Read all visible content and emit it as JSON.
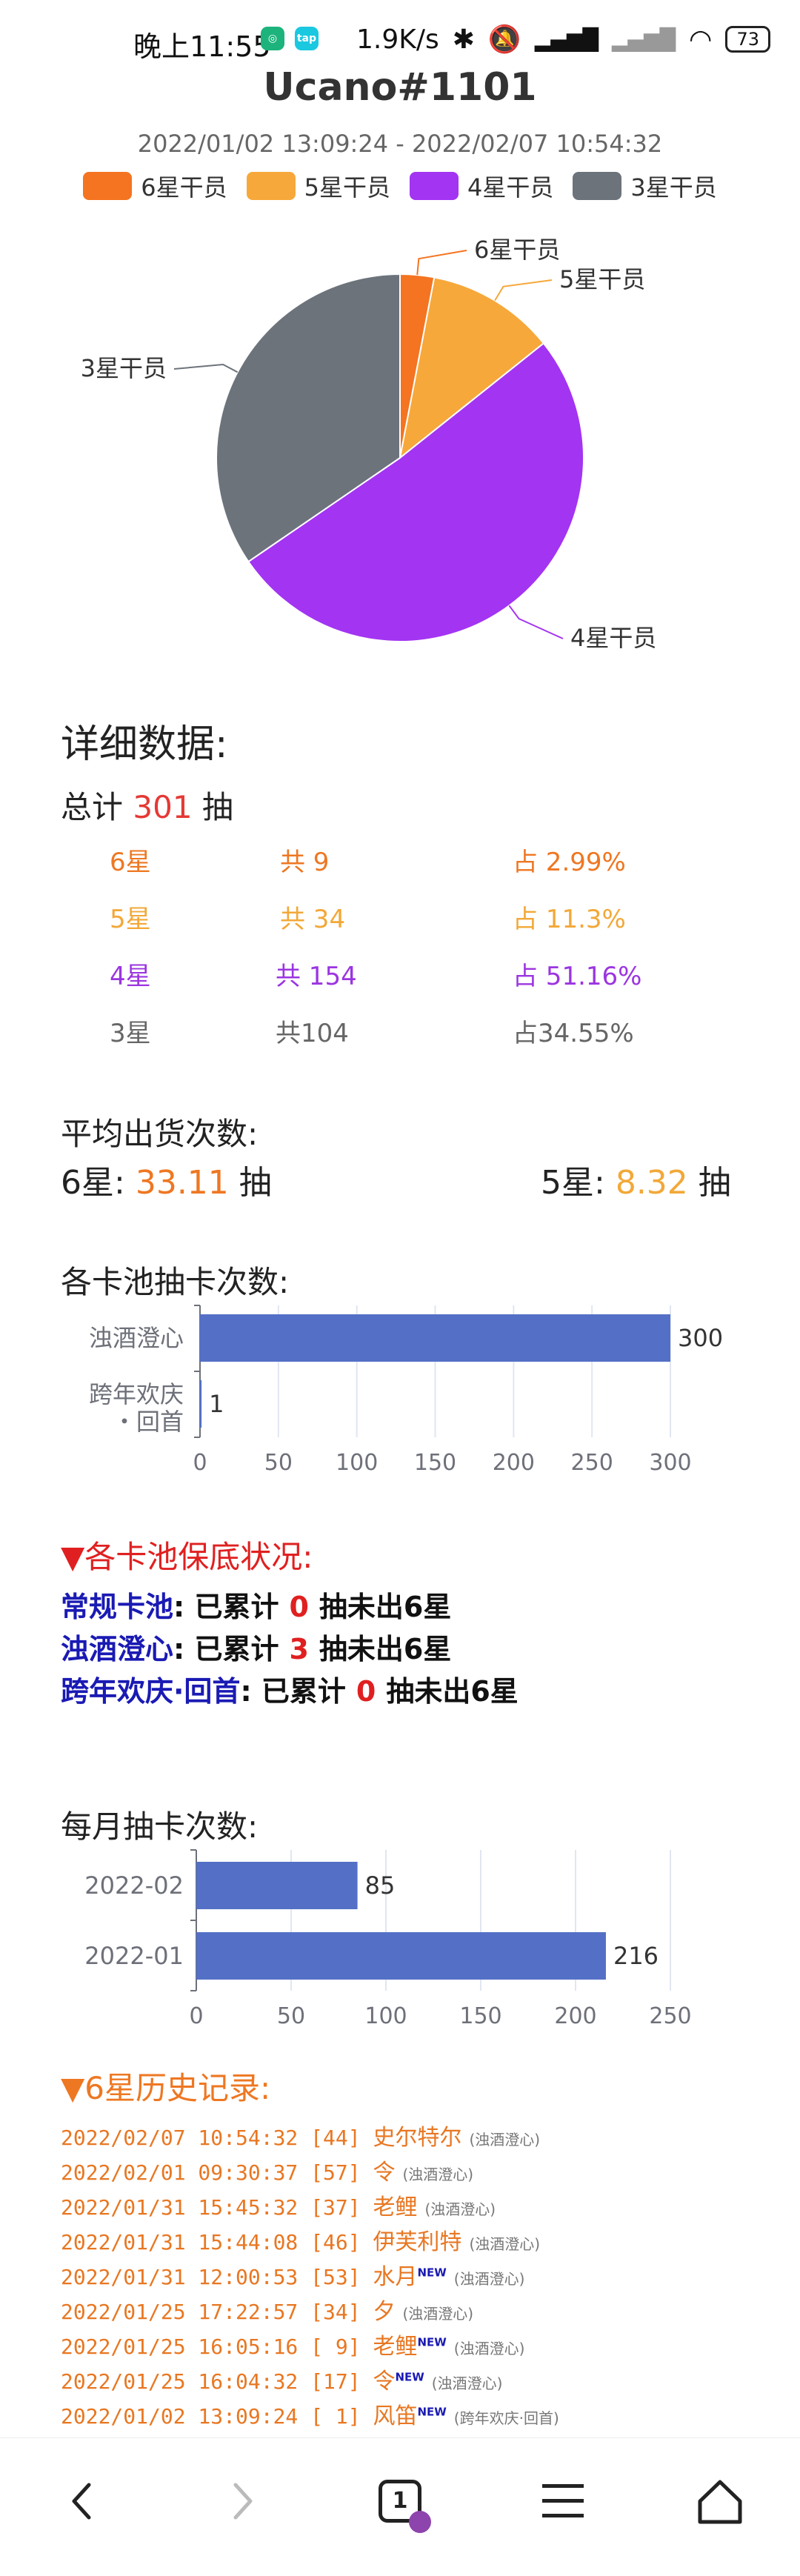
{
  "status_bar": {
    "time": "晚上11:55",
    "network": "1.9K/s",
    "battery": "73",
    "badge2": "tap"
  },
  "header": {
    "title": "Ucano#1101",
    "date_range": "2022/01/02 13:09:24 - 2022/02/07 10:54:32"
  },
  "pie": {
    "legend": [
      {
        "label": "6星干员",
        "color": "#f47421"
      },
      {
        "label": "5星干员",
        "color": "#f7a83a"
      },
      {
        "label": "4星干员",
        "color": "#a334f2"
      },
      {
        "label": "3星干员",
        "color": "#6c737b"
      }
    ],
    "labels": [
      "6星干员",
      "5星干员",
      "4星干员",
      "3星干员"
    ]
  },
  "chart_data": [
    {
      "type": "pie",
      "categories": [
        "6星干员",
        "5星干员",
        "4星干员",
        "3星干员"
      ],
      "values": [
        9,
        34,
        154,
        104
      ],
      "colors": [
        "#f47421",
        "#f7a83a",
        "#a334f2",
        "#6c737b"
      ]
    },
    {
      "type": "bar",
      "title": "各卡池抽卡次数:",
      "categories": [
        "浊酒澄心",
        "跨年欢庆·回首"
      ],
      "values": [
        300,
        1
      ],
      "xlim": [
        0,
        300
      ],
      "ticks": [
        0,
        50,
        100,
        150,
        200,
        250,
        300
      ]
    },
    {
      "type": "bar",
      "title": "每月抽卡次数:",
      "categories": [
        "2022-02",
        "2022-01"
      ],
      "values": [
        85,
        216
      ],
      "xlim": [
        0,
        250
      ],
      "ticks": [
        0,
        50,
        100,
        150,
        200,
        250
      ]
    }
  ],
  "details": {
    "heading": "详细数据:",
    "total_prefix": "总计",
    "total": "301",
    "total_suffix": "抽",
    "rows": [
      {
        "star": "6星",
        "count": "共 9",
        "pct": "占 2.99%",
        "color": "#ee7722"
      },
      {
        "star": "5星",
        "count": "共 34",
        "pct": "占 11.3%",
        "color": "#f2a838"
      },
      {
        "star": "4星",
        "count": "共 154",
        "pct": "占 51.16%",
        "color": "#9b35e0"
      },
      {
        "star": "3星",
        "count": "共104",
        "pct": "占34.55%",
        "color": "#666666"
      }
    ]
  },
  "average": {
    "heading": "平均出货次数:",
    "six_label": "6星:",
    "six_value": "33.11",
    "five_label": "5星:",
    "five_value": "8.32",
    "unit": "抽"
  },
  "pools_chart": {
    "heading": "各卡池抽卡次数:",
    "cat1": "浊酒澄心",
    "cat2_line1": "跨年欢庆",
    "cat2_line2": "・回首",
    "ticks": [
      "0",
      "50",
      "100",
      "150",
      "200",
      "250",
      "300"
    ],
    "value_labels": [
      "300",
      "1"
    ]
  },
  "guarantee": {
    "heading": "▼各卡池保底状况:",
    "prefix": "已累计",
    "suffix": "抽未出6星",
    "items": [
      {
        "pool": "常规卡池",
        "count": "0"
      },
      {
        "pool": "浊酒澄心",
        "count": "3"
      },
      {
        "pool": "跨年欢庆·回首",
        "count": "0"
      }
    ]
  },
  "monthly_chart": {
    "heading": "每月抽卡次数:",
    "cats": [
      "2022-02",
      "2022-01"
    ],
    "ticks": [
      "0",
      "50",
      "100",
      "150",
      "200",
      "250"
    ],
    "value_labels": [
      "85",
      "216"
    ]
  },
  "history": {
    "heading": "▼6星历史记录:",
    "new_tag": "NEW",
    "records": [
      {
        "time": "2022/02/07 10:54:32 [44]",
        "name": "史尔特尔",
        "pool": "(浊酒澄心)",
        "new": false
      },
      {
        "time": "2022/02/01 09:30:37 [57]",
        "name": "令",
        "pool": "(浊酒澄心)",
        "new": false
      },
      {
        "time": "2022/01/31 15:45:32 [37]",
        "name": "老鲤",
        "pool": "(浊酒澄心)",
        "new": false
      },
      {
        "time": "2022/01/31 15:44:08 [46]",
        "name": "伊芙利特",
        "pool": "(浊酒澄心)",
        "new": false
      },
      {
        "time": "2022/01/31 12:00:53 [53]",
        "name": "水月",
        "pool": "(浊酒澄心)",
        "new": true
      },
      {
        "time": "2022/01/25 17:22:57 [34]",
        "name": "夕",
        "pool": "(浊酒澄心)",
        "new": false
      },
      {
        "time": "2022/01/25 16:05:16 [ 9]",
        "name": "老鲤",
        "pool": "(浊酒澄心)",
        "new": true
      },
      {
        "time": "2022/01/25 16:04:32 [17]",
        "name": "令",
        "pool": "(浊酒澄心)",
        "new": true
      },
      {
        "time": "2022/01/02 13:09:24 [ 1]",
        "name": "风笛",
        "pool": "(跨年欢庆·回首)",
        "new": true
      }
    ]
  },
  "nav": {
    "tab_count": "1"
  }
}
